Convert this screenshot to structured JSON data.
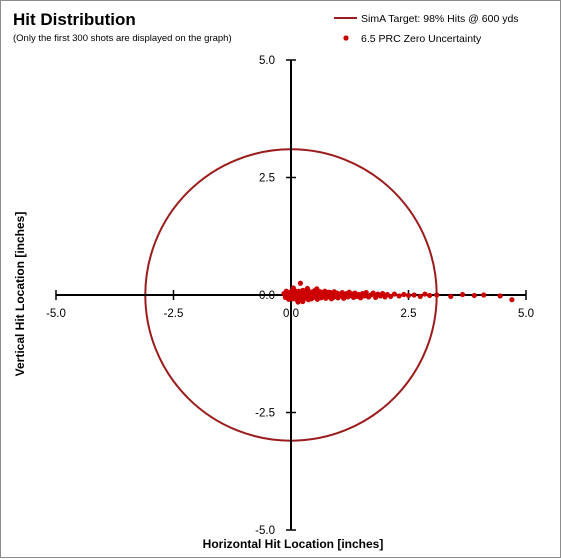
{
  "chart_data": {
    "type": "scatter",
    "title": "Hit Distribution",
    "subtitle": "(Only the first 300 shots are displayed on the graph)",
    "xlabel": "Horizontal Hit Location [inches]",
    "ylabel": "Vertical Hit Location [inches]",
    "xlim": [
      -5,
      5
    ],
    "ylim": [
      -5,
      5
    ],
    "x_ticks": [
      "-5.0",
      "-2.5",
      "0.0",
      "2.5",
      "5.0"
    ],
    "y_ticks": [
      "5.0",
      "2.5",
      "0.0",
      "-2.5",
      "-5.0"
    ],
    "legend_position": "top-right",
    "colors": {
      "target": "#9b1c1c",
      "points": "#cc0000",
      "axes": "#000000"
    },
    "target": {
      "name": "SimA Target:  98% Hits @ 600 yds",
      "shape": "circle",
      "center": [
        0,
        0
      ],
      "radius": 3.1
    },
    "series": [
      {
        "name": "6.5 PRC Zero Uncertainty",
        "points": [
          [
            -0.15,
            0.03
          ],
          [
            -0.12,
            -0.05
          ],
          [
            -0.1,
            0.08
          ],
          [
            -0.08,
            -0.02
          ],
          [
            -0.06,
            0.05
          ],
          [
            -0.05,
            -0.09
          ],
          [
            -0.03,
            0.02
          ],
          [
            -0.02,
            -0.06
          ],
          [
            0.0,
            0.04
          ],
          [
            0.01,
            -0.03
          ],
          [
            0.02,
            0.09
          ],
          [
            0.03,
            -0.08
          ],
          [
            0.04,
            0.01
          ],
          [
            0.05,
            0.06
          ],
          [
            0.06,
            -0.04
          ],
          [
            0.07,
            0.1
          ],
          [
            0.08,
            -0.01
          ],
          [
            0.09,
            0.03
          ],
          [
            0.1,
            -0.07
          ],
          [
            0.11,
            0.07
          ],
          [
            0.12,
            -0.1
          ],
          [
            0.13,
            0.0
          ],
          [
            0.14,
            0.05
          ],
          [
            0.15,
            -0.03
          ],
          [
            0.16,
            0.08
          ],
          [
            0.17,
            -0.06
          ],
          [
            0.18,
            0.02
          ],
          [
            0.19,
            -0.09
          ],
          [
            0.2,
            0.04
          ],
          [
            0.21,
            -0.02
          ],
          [
            0.22,
            0.07
          ],
          [
            0.23,
            -0.05
          ],
          [
            0.24,
            0.01
          ],
          [
            0.25,
            0.1
          ],
          [
            0.26,
            -0.08
          ],
          [
            0.27,
            0.03
          ],
          [
            0.28,
            -0.01
          ],
          [
            0.29,
            0.06
          ],
          [
            0.3,
            -0.04
          ],
          [
            0.31,
            0.09
          ],
          [
            0.32,
            0.0
          ],
          [
            0.33,
            -0.07
          ],
          [
            0.34,
            0.05
          ],
          [
            0.35,
            -0.03
          ],
          [
            0.36,
            0.08
          ],
          [
            0.37,
            -0.1
          ],
          [
            0.38,
            0.02
          ],
          [
            0.39,
            -0.05
          ],
          [
            0.4,
            0.07
          ],
          [
            0.41,
            -0.02
          ],
          [
            0.42,
            0.04
          ],
          [
            0.43,
            -0.08
          ],
          [
            0.44,
            0.01
          ],
          [
            0.45,
            0.06
          ],
          [
            0.46,
            -0.06
          ],
          [
            0.47,
            0.03
          ],
          [
            0.48,
            -0.01
          ],
          [
            0.5,
            0.09
          ],
          [
            0.52,
            -0.04
          ],
          [
            0.54,
            0.05
          ],
          [
            0.56,
            -0.09
          ],
          [
            0.58,
            0.02
          ],
          [
            0.6,
            -0.03
          ],
          [
            0.62,
            0.07
          ],
          [
            0.64,
            -0.06
          ],
          [
            0.66,
            0.01
          ],
          [
            0.68,
            0.04
          ],
          [
            0.7,
            -0.02
          ],
          [
            0.72,
            0.08
          ],
          [
            0.74,
            -0.07
          ],
          [
            0.76,
            0.03
          ],
          [
            0.78,
            -0.04
          ],
          [
            0.8,
            0.06
          ],
          [
            0.82,
            -0.01
          ],
          [
            0.84,
            0.05
          ],
          [
            0.86,
            -0.08
          ],
          [
            0.88,
            0.02
          ],
          [
            0.9,
            -0.05
          ],
          [
            0.92,
            0.07
          ],
          [
            0.94,
            0.0
          ],
          [
            0.96,
            -0.03
          ],
          [
            0.98,
            0.04
          ],
          [
            1.0,
            -0.06
          ],
          [
            1.03,
            0.02
          ],
          [
            1.06,
            -0.02
          ],
          [
            1.09,
            0.05
          ],
          [
            1.12,
            -0.07
          ],
          [
            1.15,
            0.01
          ],
          [
            1.18,
            0.03
          ],
          [
            1.21,
            -0.04
          ],
          [
            1.24,
            0.06
          ],
          [
            1.27,
            -0.01
          ],
          [
            1.3,
            0.02
          ],
          [
            1.33,
            -0.05
          ],
          [
            1.36,
            0.04
          ],
          [
            1.4,
            -0.03
          ],
          [
            1.44,
            0.01
          ],
          [
            1.48,
            -0.06
          ],
          [
            1.52,
            0.03
          ],
          [
            1.56,
            -0.02
          ],
          [
            1.6,
            0.05
          ],
          [
            1.65,
            -0.04
          ],
          [
            1.7,
            0.0
          ],
          [
            1.75,
            0.04
          ],
          [
            1.8,
            -0.05
          ],
          [
            1.85,
            0.02
          ],
          [
            1.9,
            -0.02
          ],
          [
            1.95,
            0.03
          ],
          [
            2.0,
            -0.04
          ],
          [
            2.05,
            0.01
          ],
          [
            2.12,
            -0.03
          ],
          [
            2.2,
            0.02
          ],
          [
            2.3,
            -0.02
          ],
          [
            2.4,
            0.01
          ],
          [
            2.5,
            -0.01
          ],
          [
            2.62,
            0.0
          ],
          [
            2.75,
            -0.03
          ],
          [
            2.85,
            0.02
          ],
          [
            2.95,
            -0.01
          ],
          [
            3.1,
            0.0
          ],
          [
            3.4,
            -0.03
          ],
          [
            3.65,
            0.01
          ],
          [
            3.9,
            -0.01
          ],
          [
            4.1,
            0.0
          ],
          [
            4.45,
            -0.02
          ],
          [
            4.7,
            -0.1
          ],
          [
            0.2,
            0.25
          ],
          [
            0.05,
            0.15
          ],
          [
            0.35,
            0.14
          ],
          [
            0.15,
            -0.15
          ],
          [
            0.55,
            0.13
          ],
          [
            0.25,
            -0.14
          ]
        ]
      }
    ]
  }
}
